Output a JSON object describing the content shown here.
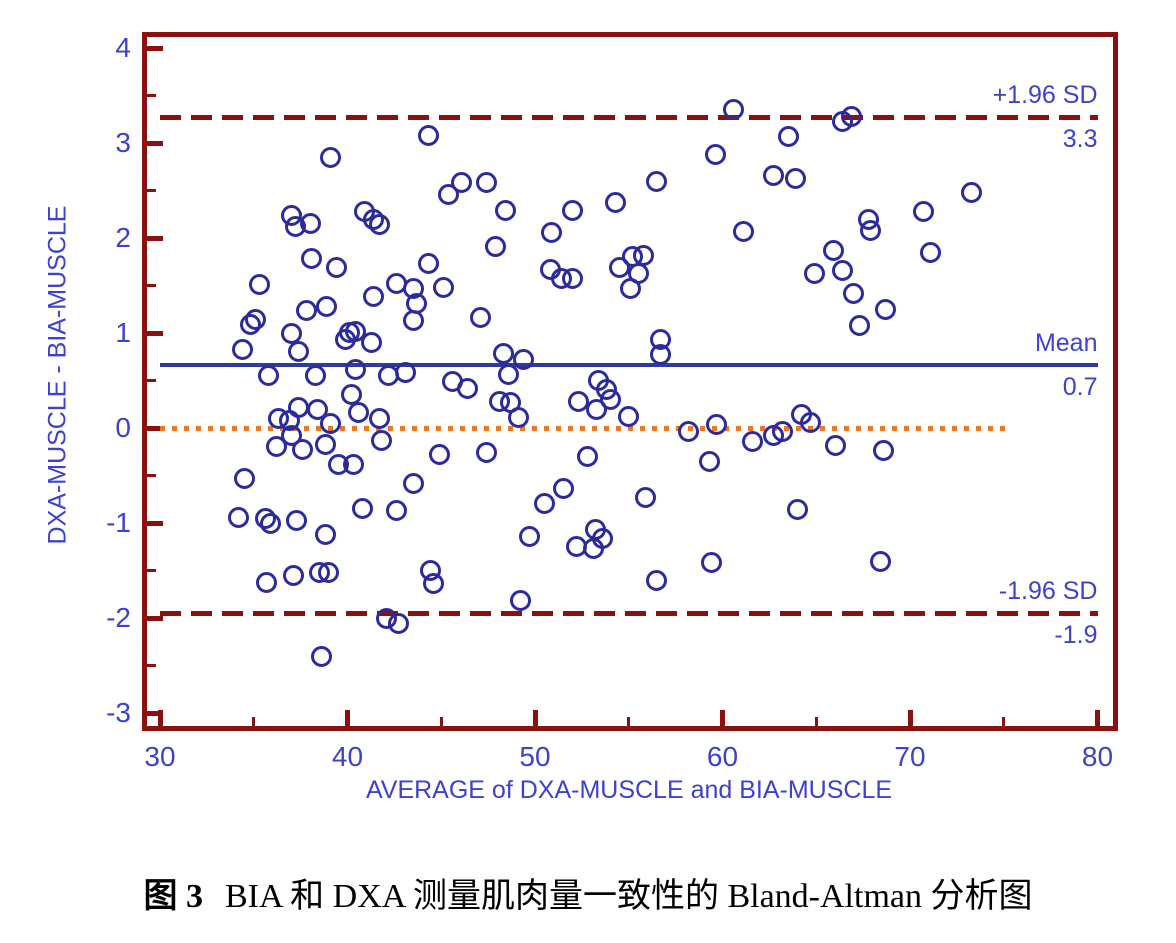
{
  "caption": {
    "figure_label": "图 3",
    "title_text": "BIA 和 DXA 测量肌肉量一致性的 Bland-Altman 分析图"
  },
  "colors": {
    "frame_maroon": "#8b1111",
    "dashed_maroon": "#8b1111",
    "mean_navy": "#2d3aa0",
    "zero_orange": "#f0761f",
    "point_stroke": "#2b2b9e",
    "label_blue": "#3c41cf"
  },
  "chart_data": {
    "type": "scatter",
    "title": "",
    "xlabel": "AVERAGE of DXA-MUSCLE and BIA-MUSCLE",
    "ylabel": "DXA-MUSCLE - BIA-MUSCLE",
    "xlim": [
      30,
      80
    ],
    "ylim": [
      -3,
      4
    ],
    "x_major_ticks": [
      30,
      40,
      50,
      60,
      70,
      80
    ],
    "x_minor_ticks": [
      35,
      45,
      55,
      65,
      75
    ],
    "y_major_ticks": [
      4,
      3,
      2,
      1,
      0,
      -1,
      -2,
      -3
    ],
    "y_minor_ticks": [
      3.5,
      2.5,
      1.5,
      0.5,
      -0.5,
      -1.5,
      -2.5
    ],
    "grid": false,
    "legend": "none",
    "reference_lines": [
      {
        "id": "upper_loa",
        "value": 3.27,
        "label": "+1.96 SD",
        "value_label": "3.3",
        "style": "dashed",
        "color": "#8b1111",
        "x_start": 30,
        "x_end": 80
      },
      {
        "id": "mean",
        "value": 0.66,
        "label": "Mean",
        "value_label": "0.7",
        "style": "solid",
        "color": "#2d3aa0",
        "x_start": 30,
        "x_end": 80
      },
      {
        "id": "zero",
        "value": 0.0,
        "label": "",
        "value_label": "",
        "style": "dotted",
        "color": "#f0761f",
        "x_start": 30,
        "x_end": 75.3
      },
      {
        "id": "lower_loa",
        "value": -1.95,
        "label": "-1.96 SD",
        "value_label": "-1.9",
        "style": "dashed",
        "color": "#8b1111",
        "x_start": 30,
        "x_end": 80
      }
    ],
    "points": [
      [
        44.3,
        3.08
      ],
      [
        39.1,
        2.85
      ],
      [
        46.1,
        2.58
      ],
      [
        45.4,
        2.46
      ],
      [
        37.0,
        2.24
      ],
      [
        37.25,
        2.12
      ],
      [
        38.05,
        2.15
      ],
      [
        40.9,
        2.28
      ],
      [
        41.4,
        2.2
      ],
      [
        41.7,
        2.14
      ],
      [
        38.1,
        1.78
      ],
      [
        39.4,
        1.69
      ],
      [
        35.3,
        1.51
      ],
      [
        44.3,
        1.73
      ],
      [
        42.6,
        1.52
      ],
      [
        43.5,
        1.47
      ],
      [
        45.1,
        1.48
      ],
      [
        43.7,
        1.31
      ],
      [
        43.5,
        1.13
      ],
      [
        41.4,
        1.38
      ],
      [
        37.8,
        1.24
      ],
      [
        38.9,
        1.28
      ],
      [
        34.8,
        1.09
      ],
      [
        35.1,
        1.14
      ],
      [
        34.4,
        0.83
      ],
      [
        37.0,
        0.99
      ],
      [
        37.4,
        0.81
      ],
      [
        39.9,
        0.93
      ],
      [
        40.1,
        1.01
      ],
      [
        40.45,
        1.02
      ],
      [
        41.3,
        0.9
      ],
      [
        35.8,
        0.55
      ],
      [
        38.3,
        0.55
      ],
      [
        40.4,
        0.62
      ],
      [
        42.2,
        0.55
      ],
      [
        43.1,
        0.58
      ],
      [
        45.6,
        0.49
      ],
      [
        46.4,
        0.42
      ],
      [
        60.6,
        3.35
      ],
      [
        63.5,
        3.07
      ],
      [
        59.6,
        2.88
      ],
      [
        62.7,
        2.66
      ],
      [
        63.9,
        2.63
      ],
      [
        47.4,
        2.58
      ],
      [
        56.5,
        2.6
      ],
      [
        48.4,
        2.29
      ],
      [
        52.0,
        2.29
      ],
      [
        54.3,
        2.37
      ],
      [
        50.9,
        2.06
      ],
      [
        61.1,
        2.07
      ],
      [
        47.9,
        1.91
      ],
      [
        55.2,
        1.81
      ],
      [
        55.8,
        1.82
      ],
      [
        54.5,
        1.69
      ],
      [
        55.5,
        1.63
      ],
      [
        55.1,
        1.47
      ],
      [
        50.8,
        1.67
      ],
      [
        51.4,
        1.57
      ],
      [
        52.0,
        1.57
      ],
      [
        47.1,
        1.16
      ],
      [
        56.7,
        0.93
      ],
      [
        56.7,
        0.77
      ],
      [
        48.3,
        0.78
      ],
      [
        49.4,
        0.72
      ],
      [
        48.6,
        0.56
      ],
      [
        53.4,
        0.5
      ],
      [
        66.4,
        3.23
      ],
      [
        66.9,
        3.28
      ],
      [
        73.3,
        2.48
      ],
      [
        70.7,
        2.28
      ],
      [
        67.8,
        2.19
      ],
      [
        67.9,
        2.08
      ],
      [
        65.9,
        1.87
      ],
      [
        71.1,
        1.85
      ],
      [
        64.9,
        1.63
      ],
      [
        66.4,
        1.66
      ],
      [
        67.0,
        1.42
      ],
      [
        68.7,
        1.25
      ],
      [
        67.3,
        1.08
      ],
      [
        37.4,
        0.22
      ],
      [
        38.4,
        0.2
      ],
      [
        36.3,
        0.1
      ],
      [
        36.9,
        0.08
      ],
      [
        39.1,
        0.05
      ],
      [
        37.0,
        -0.08
      ],
      [
        36.2,
        -0.19
      ],
      [
        37.6,
        -0.23
      ],
      [
        38.8,
        -0.17
      ],
      [
        39.5,
        -0.38
      ],
      [
        40.3,
        -0.38
      ],
      [
        34.5,
        -0.53
      ],
      [
        43.5,
        -0.58
      ],
      [
        34.2,
        -0.94
      ],
      [
        35.6,
        -0.95
      ],
      [
        35.9,
        -1.01
      ],
      [
        37.3,
        -0.97
      ],
      [
        38.8,
        -1.12
      ],
      [
        40.8,
        -0.85
      ],
      [
        42.6,
        -0.87
      ],
      [
        44.9,
        -0.28
      ],
      [
        44.4,
        -1.5
      ],
      [
        44.6,
        -1.64
      ],
      [
        35.7,
        -1.63
      ],
      [
        37.1,
        -1.55
      ],
      [
        38.5,
        -1.52
      ],
      [
        39.0,
        -1.52
      ],
      [
        42.1,
        -2.0
      ],
      [
        42.7,
        -2.06
      ],
      [
        38.6,
        -2.41
      ],
      [
        41.7,
        0.1
      ],
      [
        41.8,
        -0.13
      ],
      [
        40.2,
        0.35
      ],
      [
        40.6,
        0.16
      ],
      [
        53.8,
        0.41
      ],
      [
        54.0,
        0.3
      ],
      [
        52.3,
        0.28
      ],
      [
        48.1,
        0.28
      ],
      [
        48.7,
        0.27
      ],
      [
        53.3,
        0.2
      ],
      [
        49.1,
        0.11
      ],
      [
        55.0,
        0.12
      ],
      [
        58.2,
        -0.04
      ],
      [
        59.7,
        0.04
      ],
      [
        61.6,
        -0.14
      ],
      [
        62.7,
        -0.08
      ],
      [
        63.2,
        -0.04
      ],
      [
        47.4,
        -0.26
      ],
      [
        52.8,
        -0.3
      ],
      [
        59.3,
        -0.35
      ],
      [
        51.5,
        -0.64
      ],
      [
        50.5,
        -0.79
      ],
      [
        55.9,
        -0.73
      ],
      [
        49.7,
        -1.14
      ],
      [
        53.2,
        -1.07
      ],
      [
        53.6,
        -1.16
      ],
      [
        53.1,
        -1.27
      ],
      [
        52.2,
        -1.25
      ],
      [
        59.4,
        -1.42
      ],
      [
        56.5,
        -1.61
      ],
      [
        49.2,
        -1.82
      ],
      [
        64.2,
        0.14
      ],
      [
        64.7,
        0.06
      ],
      [
        66.0,
        -0.18
      ],
      [
        68.6,
        -0.24
      ],
      [
        64.0,
        -0.86
      ],
      [
        68.4,
        -1.41
      ]
    ]
  }
}
